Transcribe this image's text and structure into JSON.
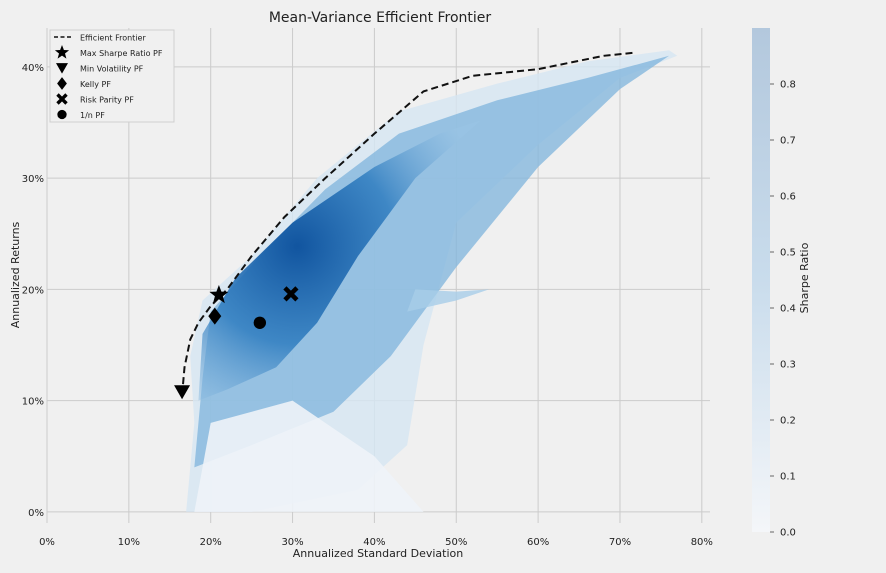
{
  "chart_data": {
    "type": "scatter",
    "title": "Mean-Variance Efficient Frontier",
    "xlabel": "Annualized Standard Deviation",
    "ylabel": "Annualized Returns",
    "xlim": [
      0,
      0.81
    ],
    "ylim": [
      -0.01,
      0.435
    ],
    "x_ticks": [
      0,
      0.1,
      0.2,
      0.3,
      0.4,
      0.5,
      0.6,
      0.7,
      0.8
    ],
    "x_tick_labels": [
      "0%",
      "10%",
      "20%",
      "30%",
      "40%",
      "50%",
      "60%",
      "70%",
      "80%"
    ],
    "y_ticks": [
      0,
      0.1,
      0.2,
      0.3,
      0.4
    ],
    "y_tick_labels": [
      "0%",
      "10%",
      "20%",
      "30%",
      "40%"
    ],
    "grid": true,
    "legend_placement": "top-left",
    "colormap": "Blues",
    "colorbar": {
      "label": "Sharpe Ratio",
      "range": [
        0.0,
        0.9
      ],
      "ticks": [
        0.0,
        0.1,
        0.2,
        0.3,
        0.4,
        0.5,
        0.6,
        0.7,
        0.8
      ],
      "tick_labels": [
        "0.0",
        "0.1",
        "0.2",
        "0.3",
        "0.4",
        "0.5",
        "0.6",
        "0.7",
        "0.8"
      ]
    },
    "efficient_frontier": {
      "name": "Efficient Frontier",
      "x": [
        0.165,
        0.168,
        0.175,
        0.185,
        0.2,
        0.22,
        0.25,
        0.29,
        0.34,
        0.4,
        0.46,
        0.52,
        0.6,
        0.68,
        0.72
      ],
      "y": [
        0.105,
        0.13,
        0.155,
        0.17,
        0.185,
        0.2,
        0.23,
        0.265,
        0.3,
        0.34,
        0.378,
        0.392,
        0.398,
        0.41,
        0.413
      ]
    },
    "portfolios": [
      {
        "name": "Max Sharpe Ratio PF",
        "marker": "star",
        "x": 0.21,
        "y": 0.195
      },
      {
        "name": "Min Volatility PF",
        "marker": "triangle-down",
        "x": 0.165,
        "y": 0.108
      },
      {
        "name": "Kelly PF",
        "marker": "diamond",
        "x": 0.205,
        "y": 0.176
      },
      {
        "name": "Risk Parity PF",
        "marker": "x",
        "x": 0.298,
        "y": 0.196
      },
      {
        "name": "1/n PF",
        "marker": "circle",
        "x": 0.26,
        "y": 0.17
      }
    ]
  }
}
